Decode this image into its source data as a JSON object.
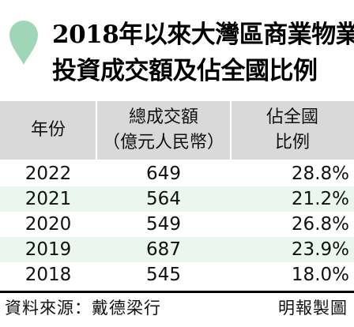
{
  "title": {
    "line1": "2018年以來大灣區商業物業",
    "line2": "投資成交額及佔全國比例"
  },
  "colors": {
    "accent_drop": "#9fd6b7",
    "header_bg": "#d9d9d9",
    "alt_row_bg": "#eaf6ee"
  },
  "icon": "location-drop-icon",
  "chart_data": {
    "type": "table",
    "columns": [
      {
        "label": "年份"
      },
      {
        "label_lines": [
          "總成交額",
          "（億元人民幣）"
        ]
      },
      {
        "label_lines": [
          "佔全國",
          "比例"
        ]
      }
    ],
    "rows": [
      {
        "year": "2022",
        "value": "649",
        "share": "28.8%"
      },
      {
        "year": "2021",
        "value": "564",
        "share": "21.2%"
      },
      {
        "year": "2020",
        "value": "549",
        "share": "26.8%"
      },
      {
        "year": "2019",
        "value": "687",
        "share": "23.9%"
      },
      {
        "year": "2018",
        "value": "545",
        "share": "18.0%"
      }
    ]
  },
  "footer": {
    "source": "資料來源：戴德梁行",
    "credit": "明報製圖"
  }
}
